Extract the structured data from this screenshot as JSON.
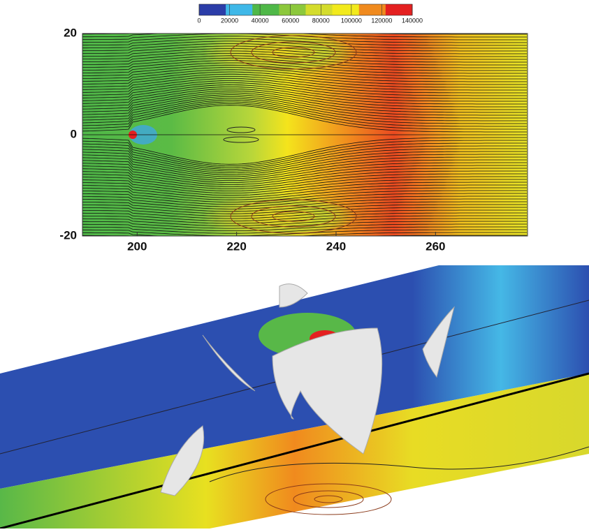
{
  "chart_data": {
    "type": "contour",
    "xlim": [
      189,
      278.5
    ],
    "xticks": [
      200,
      220,
      240,
      260
    ],
    "ylim": [
      -20,
      20
    ],
    "yticks": [
      -20,
      0,
      20
    ],
    "colorbar": {
      "lim": [
        0,
        140000
      ],
      "ticks": [
        0,
        20000,
        40000,
        60000,
        80000,
        100000,
        120000,
        140000
      ],
      "colors": [
        "#2b3da8",
        "#3fb8e8",
        "#4fb848",
        "#8cc83c",
        "#d4dc2c",
        "#f2ea1c",
        "#f08a1e",
        "#e42020"
      ]
    }
  }
}
